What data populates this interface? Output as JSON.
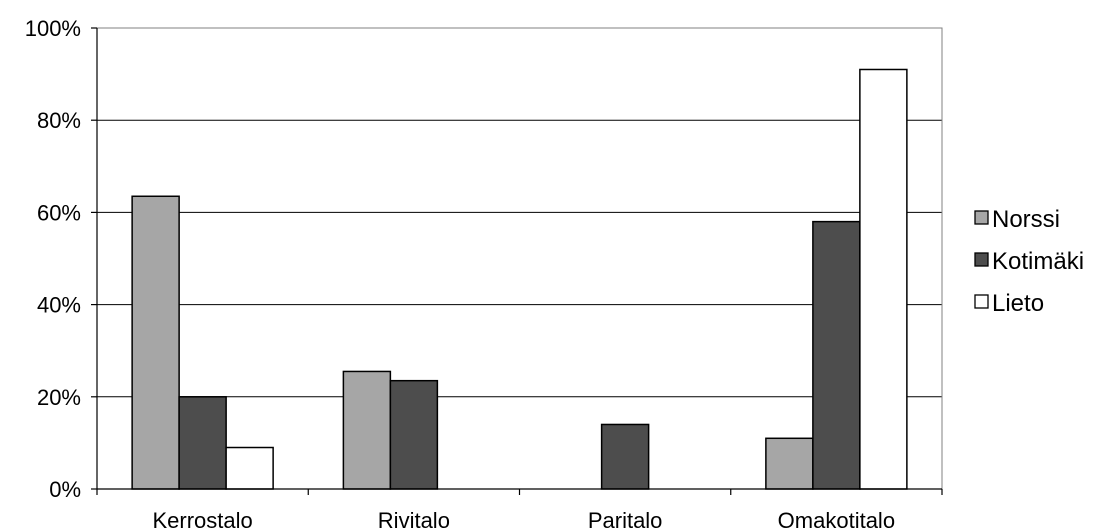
{
  "chart_data": {
    "type": "bar",
    "categories": [
      "Kerrostalo",
      "Rivitalo",
      "Paritalo",
      "Omakotitalo"
    ],
    "series": [
      {
        "name": "Norssi",
        "values": [
          63.5,
          25.5,
          0,
          11
        ],
        "color": "#a6a6a6"
      },
      {
        "name": "Kotimäki",
        "values": [
          20,
          23.5,
          14,
          58
        ],
        "color": "#4d4d4d"
      },
      {
        "name": "Lieto",
        "values": [
          9,
          0,
          0,
          91
        ],
        "color": "#ffffff"
      }
    ],
    "ylim": [
      0,
      100
    ],
    "yticks": [
      {
        "value": 0,
        "label": "0%"
      },
      {
        "value": 20,
        "label": "20%"
      },
      {
        "value": 40,
        "label": "40%"
      },
      {
        "value": 60,
        "label": "60%"
      },
      {
        "value": 80,
        "label": "80%"
      },
      {
        "value": 100,
        "label": "100%"
      }
    ],
    "grid": true,
    "legend_position": "right",
    "title": "",
    "xlabel": "",
    "ylabel": ""
  }
}
